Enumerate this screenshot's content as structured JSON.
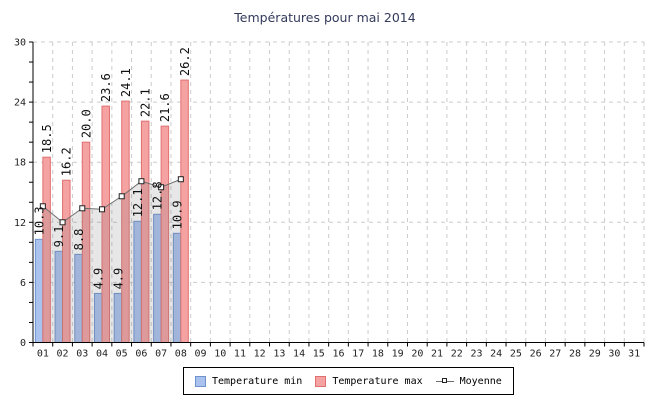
{
  "title": "Températures pour mai 2014",
  "chart_data": {
    "type": "bar",
    "title": "Températures pour mai 2014",
    "categories": [
      "01",
      "02",
      "03",
      "04",
      "05",
      "06",
      "07",
      "08",
      "09",
      "10",
      "11",
      "12",
      "13",
      "14",
      "15",
      "16",
      "17",
      "18",
      "19",
      "20",
      "21",
      "22",
      "23",
      "24",
      "25",
      "26",
      "27",
      "28",
      "29",
      "30",
      "31"
    ],
    "ylim": [
      0,
      30
    ],
    "yticks": [
      0,
      6,
      12,
      18,
      24,
      30
    ],
    "grid": "dashed",
    "legend_position": "bottom",
    "value_labels": "rotated 90deg above bars",
    "series": [
      {
        "name": "Temperature min",
        "type": "bar",
        "fill": "#a9c3ee",
        "border": "#6f92cf",
        "values": [
          10.3,
          9.1,
          8.8,
          4.9,
          4.9,
          12.1,
          12.8,
          10.9
        ],
        "labels": [
          "10.3",
          "9.1",
          "8.8",
          "4.9",
          "4.9",
          "12.1",
          "12.8",
          "10.9"
        ]
      },
      {
        "name": "Temperature max",
        "type": "bar",
        "fill": "#f5a2a2",
        "border": "#e07070",
        "values": [
          18.5,
          16.2,
          20.0,
          23.6,
          24.1,
          22.1,
          21.6,
          26.2
        ],
        "labels": [
          "18.5",
          "16.2",
          "20.0",
          "23.6",
          "24.1",
          "22.1",
          "21.6",
          "26.2"
        ]
      },
      {
        "name": "Moyenne",
        "type": "line-area",
        "line_color": "#6e6e6e",
        "marker_fill": "#ffffff",
        "marker_border": "#222222",
        "area_fill": "rgba(120,120,120,0.18)",
        "values_estimated_from_pixels": true,
        "values": [
          13.6,
          12.0,
          13.4,
          13.3,
          14.6,
          16.1,
          15.5,
          16.3
        ]
      }
    ]
  },
  "colors": {
    "background": "#ffffff",
    "title": "#333a5c",
    "axis": "#000000",
    "grid": "#cccccc",
    "tick_label": "#222222",
    "value_label": "#111111"
  }
}
